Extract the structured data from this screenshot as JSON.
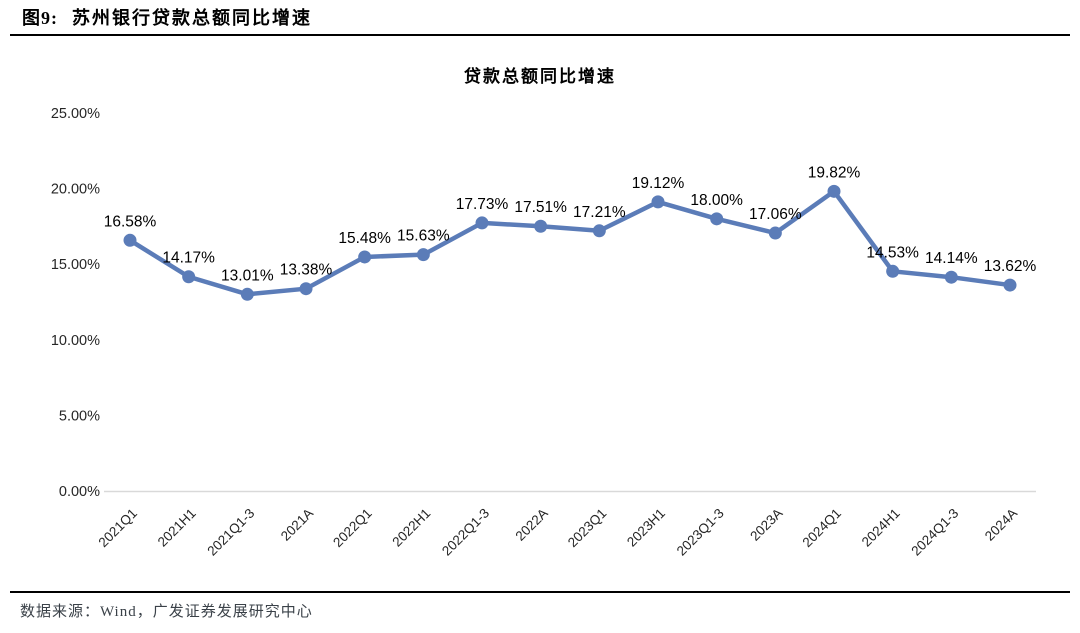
{
  "header": {
    "figure_label": "图9:",
    "title": "苏州银行贷款总额同比增速"
  },
  "footer": {
    "source": "数据来源：Wind，广发证券发展研究中心"
  },
  "chart_data": {
    "type": "line",
    "title": "贷款总额同比增速",
    "categories": [
      "2021Q1",
      "2021H1",
      "2021Q1-3",
      "2021A",
      "2022Q1",
      "2022H1",
      "2022Q1-3",
      "2022A",
      "2023Q1",
      "2023H1",
      "2023Q1-3",
      "2023A",
      "2024Q1",
      "2024H1",
      "2024Q1-3",
      "2024A"
    ],
    "values": [
      16.58,
      14.17,
      13.01,
      13.38,
      15.48,
      15.63,
      17.73,
      17.51,
      17.21,
      19.12,
      18.0,
      17.06,
      19.82,
      14.53,
      14.14,
      13.62
    ],
    "data_labels": [
      "16.58%",
      "14.17%",
      "13.01%",
      "13.38%",
      "15.48%",
      "15.63%",
      "17.73%",
      "17.51%",
      "17.21%",
      "19.12%",
      "18.00%",
      "17.06%",
      "19.82%",
      "14.53%",
      "14.14%",
      "13.62%"
    ],
    "xlabel": "",
    "ylabel": "",
    "ylim": [
      0,
      25
    ],
    "ytick_step": 5,
    "ytick_labels": [
      "0.00%",
      "5.00%",
      "10.00%",
      "15.00%",
      "20.00%",
      "25.00%"
    ],
    "grid": "off",
    "legend": "none",
    "line_color": "#5B7CB8",
    "marker": "circle",
    "axis_line_color": "#D9D9D9",
    "tick_color": "#262626",
    "label_color": "#000000"
  }
}
